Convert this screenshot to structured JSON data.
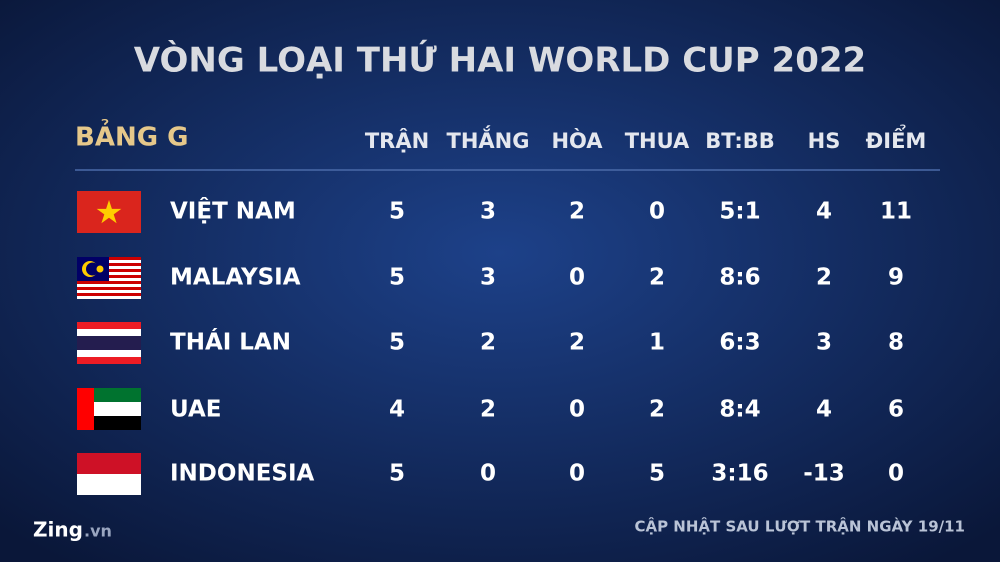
{
  "title": "VÒNG LOẠI THỨ HAI WORLD CUP 2022",
  "table": {
    "group": "BẢNG G",
    "columns": [
      "TRẬN",
      "THẮNG",
      "HÒA",
      "THUA",
      "BT:BB",
      "HS",
      "ĐIỂM"
    ],
    "rows": [
      [
        "VIỆT NAM",
        5,
        3,
        2,
        0,
        "5:1",
        4,
        11
      ],
      [
        "MALAYSIA",
        5,
        3,
        0,
        2,
        "8:6",
        2,
        9
      ],
      [
        "THÁI LAN",
        5,
        2,
        2,
        1,
        "6:3",
        3,
        8
      ],
      [
        "UAE",
        4,
        2,
        0,
        2,
        "8:4",
        4,
        6
      ],
      [
        "INDONESIA",
        5,
        0,
        0,
        5,
        "3:16",
        -13,
        0
      ]
    ]
  },
  "footer": {
    "logo": "Zing",
    "logo_suffix": ".vn",
    "note": "CẬP NHẬT SAU LƯỢT TRẬN NGÀY 19/11"
  }
}
